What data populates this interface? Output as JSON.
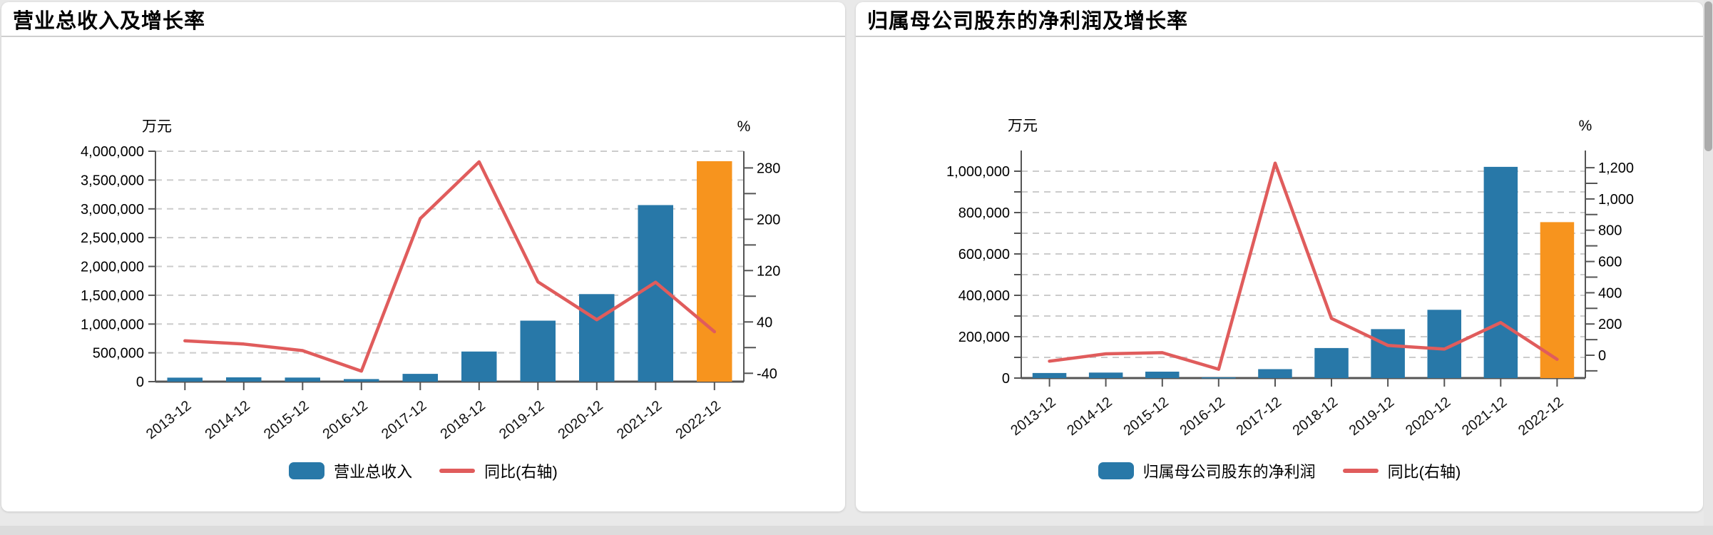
{
  "charts": [
    {
      "title": "营业总收入及增长率",
      "legend": {
        "bar": "营业总收入",
        "line": "同比(右轴)"
      }
    },
    {
      "title": "归属母公司股东的净利润及增长率",
      "legend": {
        "bar": "归属母公司股东的净利润",
        "line": "同比(右轴)"
      }
    }
  ],
  "colors": {
    "bar": "#2878a8",
    "bar_highlight_last": "#f7941e",
    "line": "#e05c5c",
    "grid": "#cccccc",
    "axis": "#555555"
  },
  "chart_data": [
    {
      "type": "bar",
      "subtype": "bar+line dual axis combo",
      "title": "营业总收入及增长率",
      "categories": [
        "2013-12",
        "2014-12",
        "2015-12",
        "2016-12",
        "2017-12",
        "2018-12",
        "2019-12",
        "2020-12",
        "2021-12",
        "2022-12"
      ],
      "series": [
        {
          "name": "营业总收入",
          "type": "bar",
          "axis": "left",
          "unit": "万元",
          "values": [
            69900,
            73850,
            70450,
            44640,
            134380,
            522800,
            1058700,
            1519000,
            3065200,
            3826400
          ],
          "color": "#2878a8",
          "last_bar_color": "#f7941e"
        },
        {
          "name": "同比(右轴)",
          "type": "line",
          "axis": "right",
          "unit": "%",
          "values": [
            10.6,
            5.6,
            -4.6,
            -36.6,
            201.1,
            289.4,
            102.5,
            43.5,
            101.8,
            24.8
          ],
          "color": "#e05c5c"
        }
      ],
      "left_axis": {
        "title": "万元",
        "min": 0,
        "max": 4000000,
        "label_step": 500000,
        "grid_step": 500000
      },
      "right_axis": {
        "title": "%",
        "min": -53,
        "max": 306,
        "labels": [
          -40,
          40,
          120,
          200,
          280
        ],
        "minor_step": 40
      },
      "grid": "dashed horizontal",
      "legend_position": "bottom"
    },
    {
      "type": "bar",
      "subtype": "bar+line dual axis combo",
      "title": "归属母公司股东的净利润及增长率",
      "categories": [
        "2013-12",
        "2014-12",
        "2015-12",
        "2016-12",
        "2017-12",
        "2018-12",
        "2019-12",
        "2020-12",
        "2021-12",
        "2022-12"
      ],
      "series": [
        {
          "name": "归属母公司股东的净利润",
          "type": "bar",
          "axis": "left",
          "unit": "万元",
          "values": [
            24340,
            26620,
            30970,
            3280,
            43240,
            145130,
            236640,
            330100,
            1020900,
            753900
          ],
          "color": "#2878a8",
          "last_bar_color": "#f7941e"
        },
        {
          "name": "同比(右轴)",
          "type": "line",
          "axis": "right",
          "unit": "%",
          "values": [
            -37.7,
            9.4,
            16.4,
            -89.4,
            1229.3,
            235.7,
            63.1,
            39.5,
            209.2,
            -26.1
          ],
          "color": "#e05c5c"
        }
      ],
      "left_axis": {
        "title": "万元",
        "min": 0,
        "max": 1100000,
        "label_step": 200000,
        "minor_step": 100000,
        "grid_step": 100000,
        "grid_max": 1000000
      },
      "right_axis": {
        "title": "%",
        "min": -146,
        "max": 1310,
        "labels": [
          0,
          200,
          400,
          600,
          800,
          1000,
          1200
        ],
        "minor_step": 100
      },
      "grid": "dashed horizontal",
      "legend_position": "bottom"
    }
  ]
}
